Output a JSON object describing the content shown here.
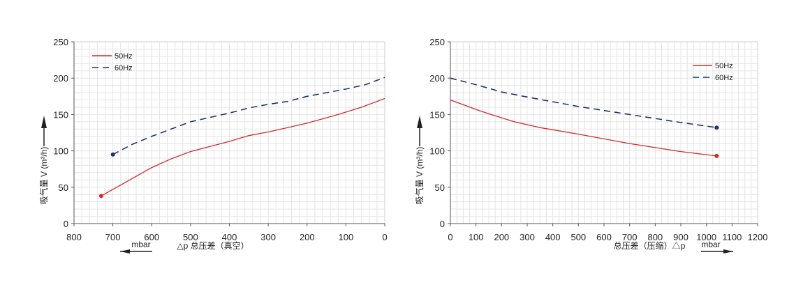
{
  "chart_data": [
    {
      "type": "line",
      "ylabel": "吸气量 V (m³/h)",
      "xlabel": "△p 总压差（真空）",
      "x_unit": "mbar",
      "xlim": [
        800,
        0
      ],
      "x_reversed": true,
      "ylim": [
        0,
        250
      ],
      "xticks": [
        800,
        700,
        600,
        500,
        400,
        300,
        200,
        100,
        0
      ],
      "yticks": [
        0,
        50,
        100,
        150,
        200,
        250
      ],
      "grid": true,
      "legend_position": "top-left",
      "series": [
        {
          "name": "50Hz",
          "color": "#d42a2a",
          "style": "solid",
          "x": [
            730,
            700,
            600,
            550,
            500,
            400,
            350,
            300,
            200,
            120,
            60,
            0
          ],
          "y": [
            38,
            47,
            77,
            89,
            99,
            113,
            121,
            126,
            138,
            150,
            160,
            172
          ]
        },
        {
          "name": "60Hz",
          "color": "#23326e",
          "style": "dashed",
          "x": [
            700,
            650,
            600,
            500,
            400,
            350,
            300,
            250,
            200,
            100,
            50,
            0
          ],
          "y": [
            95,
            109,
            120,
            140,
            152,
            159,
            164,
            168,
            175,
            185,
            191,
            201
          ]
        }
      ]
    },
    {
      "type": "line",
      "ylabel": "吸气量 V (m³/h)",
      "xlabel": "总压差（压缩）△p",
      "x_unit": "mbar",
      "xlim": [
        0,
        1200
      ],
      "x_reversed": false,
      "ylim": [
        0,
        250
      ],
      "xticks": [
        0,
        100,
        200,
        300,
        400,
        500,
        600,
        700,
        800,
        900,
        1000,
        1100,
        1200
      ],
      "yticks": [
        0,
        50,
        100,
        150,
        200,
        250
      ],
      "grid": true,
      "legend_position": "top-right",
      "series": [
        {
          "name": "50Hz",
          "color": "#d42a2a",
          "style": "solid",
          "x": [
            0,
            100,
            150,
            250,
            350,
            500,
            700,
            900,
            1040
          ],
          "y": [
            170,
            157,
            151,
            140,
            132,
            123,
            110,
            99,
            93
          ]
        },
        {
          "name": "60Hz",
          "color": "#23326e",
          "style": "dashed",
          "x": [
            0,
            100,
            200,
            300,
            500,
            700,
            900,
            1040
          ],
          "y": [
            200,
            191,
            181,
            174,
            161,
            150,
            139,
            132
          ]
        }
      ]
    }
  ]
}
